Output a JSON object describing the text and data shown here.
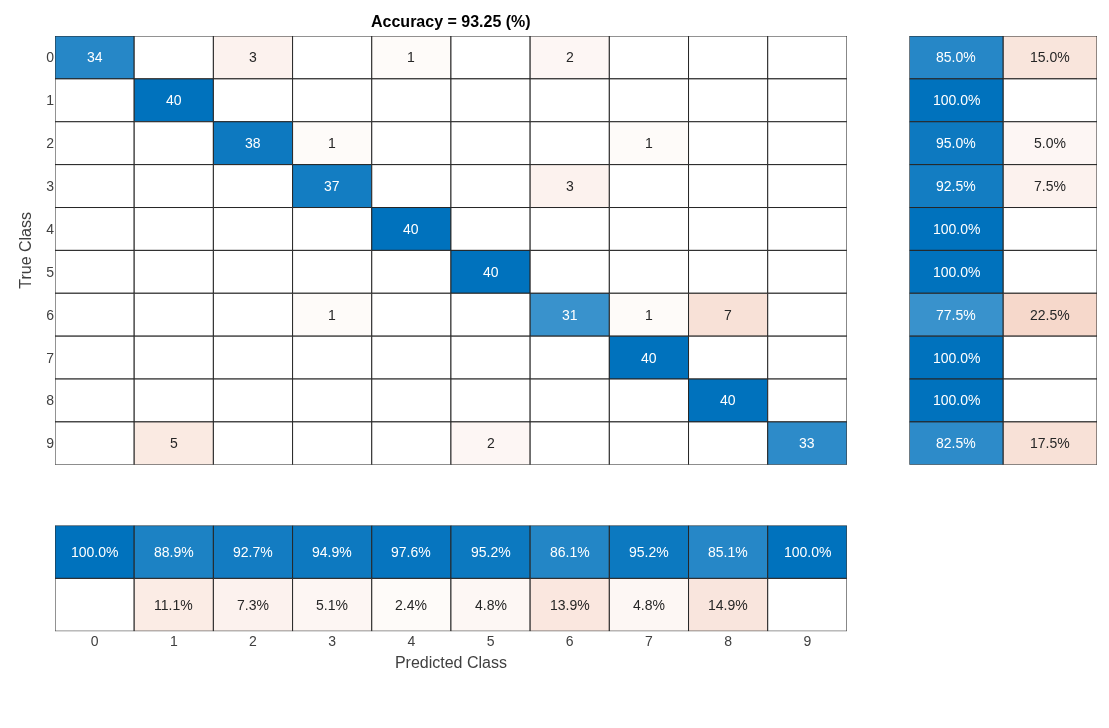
{
  "chart_data": [
    {
      "type": "heatmap",
      "title": "Accuracy = 93.25 (%)",
      "ylabel": "True Class",
      "tick_labels": "y",
      "data_labels": true,
      "categories": [
        "0",
        "1",
        "2",
        "3",
        "4",
        "5",
        "6",
        "7",
        "8",
        "9"
      ],
      "y_categories": [
        "0",
        "1",
        "2",
        "3",
        "4",
        "5",
        "6",
        "7",
        "8",
        "9"
      ],
      "cells": [
        [
          34,
          null,
          3,
          null,
          1,
          null,
          2,
          null,
          null,
          null
        ],
        [
          null,
          40,
          null,
          null,
          null,
          null,
          null,
          null,
          null,
          null
        ],
        [
          null,
          null,
          38,
          1,
          null,
          null,
          null,
          1,
          null,
          null
        ],
        [
          null,
          null,
          null,
          37,
          null,
          null,
          3,
          null,
          null,
          null
        ],
        [
          null,
          null,
          null,
          null,
          40,
          null,
          null,
          null,
          null,
          null
        ],
        [
          null,
          null,
          null,
          null,
          null,
          40,
          null,
          null,
          null,
          null
        ],
        [
          null,
          null,
          null,
          1,
          null,
          null,
          31,
          1,
          7,
          null
        ],
        [
          null,
          null,
          null,
          null,
          null,
          null,
          null,
          40,
          null,
          null
        ],
        [
          null,
          null,
          null,
          null,
          null,
          null,
          null,
          null,
          40,
          null
        ],
        [
          null,
          5,
          null,
          null,
          null,
          2,
          null,
          null,
          null,
          33
        ]
      ]
    },
    {
      "type": "heatmap",
      "tick_labels": false,
      "categories": [
        null,
        null
      ],
      "y_categories": [
        "0",
        "1",
        "2",
        "3",
        "4",
        "5",
        "6",
        "7",
        "8",
        "9"
      ],
      "cells": [
        [
          85.0,
          15.0
        ],
        [
          100.0,
          null
        ],
        [
          95.0,
          5.0
        ],
        [
          92.5,
          7.5
        ],
        [
          100.0,
          null
        ],
        [
          100.0,
          null
        ],
        [
          77.5,
          22.5
        ],
        [
          100.0,
          null
        ],
        [
          100.0,
          null
        ],
        [
          82.5,
          17.5
        ]
      ],
      "cell_labels": [
        [
          "85.0%",
          "15.0%"
        ],
        [
          "100.0%",
          null
        ],
        [
          "95.0%",
          "5.0%"
        ],
        [
          "92.5%",
          "7.5%"
        ],
        [
          "100.0%",
          null
        ],
        [
          "100.0%",
          null
        ],
        [
          "77.5%",
          "22.5%"
        ],
        [
          "100.0%",
          null
        ],
        [
          "100.0%",
          null
        ],
        [
          "82.5%",
          "17.5%"
        ]
      ]
    },
    {
      "type": "heatmap",
      "xlabel": "Predicted Class",
      "tick_labels": "x",
      "categories": [
        "0",
        "1",
        "2",
        "3",
        "4",
        "5",
        "6",
        "7",
        "8",
        "9"
      ],
      "y_categories": [
        null,
        null
      ],
      "cells": [
        [
          100.0,
          88.9,
          92.7,
          94.9,
          97.6,
          95.2,
          86.1,
          95.2,
          85.1,
          100.0
        ],
        [
          null,
          11.1,
          7.3,
          5.1,
          2.4,
          4.8,
          13.9,
          4.8,
          14.9,
          null
        ]
      ],
      "cell_labels": [
        [
          "100.0%",
          "88.9%",
          "92.7%",
          "94.9%",
          "97.6%",
          "95.2%",
          "86.1%",
          "95.2%",
          "85.1%",
          "100.0%"
        ],
        [
          null,
          "11.1%",
          "7.3%",
          "5.1%",
          "2.4%",
          "4.8%",
          "13.9%",
          "4.8%",
          "14.9%",
          null
        ]
      ]
    }
  ]
}
